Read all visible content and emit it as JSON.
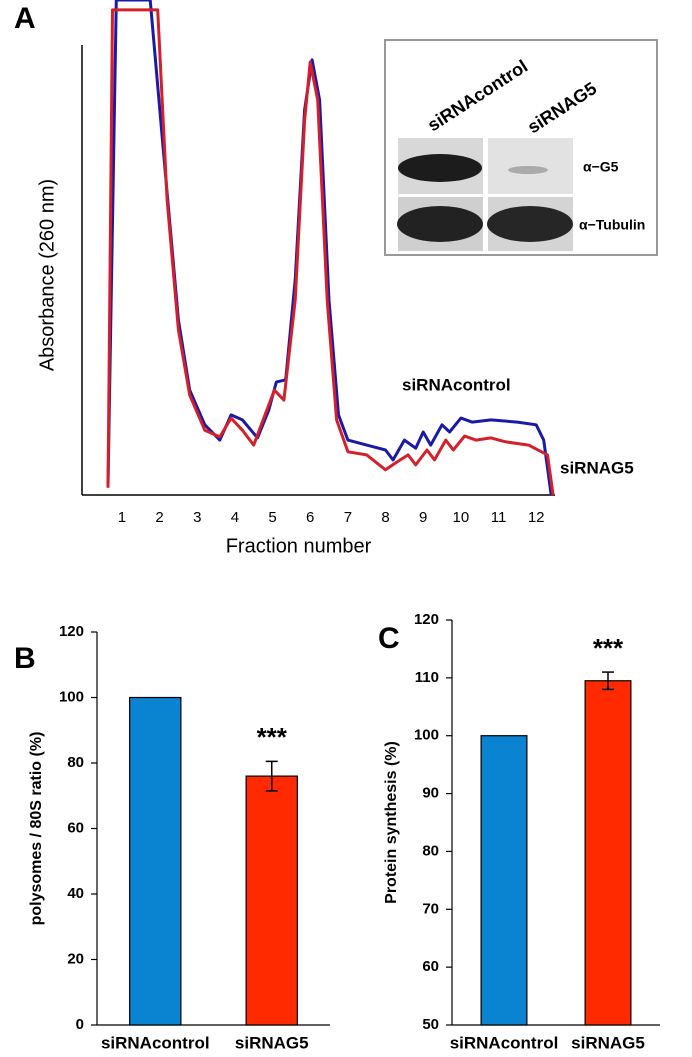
{
  "chart_data": [
    {
      "type": "line",
      "panel": "A",
      "xlabel": "Fraction number",
      "ylabel": "Absorbance (260 nm)",
      "xlim": [
        -0.06,
        12.5
      ],
      "ylim": [
        0,
        100
      ],
      "xticks": [
        1,
        2,
        3,
        4,
        5,
        6,
        7,
        8,
        9,
        10,
        11,
        12
      ],
      "series": [
        {
          "name": "siRNAcontrol",
          "color": "#1a1aa6",
          "x": [
            0.63,
            0.85,
            1.75,
            2.1,
            2.5,
            2.8,
            3.2,
            3.6,
            3.9,
            4.2,
            4.6,
            4.9,
            5.1,
            5.35,
            5.6,
            5.85,
            6.05,
            6.25,
            6.5,
            6.75,
            7.0,
            7.5,
            8.0,
            8.2,
            8.5,
            8.8,
            9.0,
            9.2,
            9.5,
            9.7,
            10.0,
            10.3,
            10.8,
            11.5,
            12.0,
            12.2,
            12.4
          ],
          "values": [
            2.2,
            110,
            110,
            76.7,
            38.9,
            23.3,
            15.6,
            12.2,
            17.8,
            16.7,
            12.7,
            18.9,
            25.1,
            25.6,
            47.8,
            85.6,
            96.7,
            87.8,
            43.3,
            17.8,
            12.2,
            11.1,
            10,
            7.8,
            12.2,
            10.4,
            14,
            11.1,
            15.6,
            14,
            17.1,
            16.2,
            16.7,
            16.2,
            15.6,
            12.2,
            0
          ]
        },
        {
          "name": "siRNAG5",
          "color": "#d4202a",
          "x": [
            0.63,
            0.75,
            1.95,
            2.2,
            2.5,
            2.8,
            3.2,
            3.6,
            3.9,
            4.2,
            4.5,
            4.8,
            5.05,
            5.3,
            5.6,
            5.85,
            6.0,
            6.2,
            6.45,
            6.7,
            7.0,
            7.5,
            8.0,
            8.3,
            8.6,
            8.8,
            9.1,
            9.3,
            9.6,
            9.8,
            10.1,
            10.4,
            10.8,
            11.2,
            11.8,
            12.3,
            12.45
          ],
          "values": [
            1.6,
            107.8,
            107.8,
            65.6,
            36.7,
            22.2,
            14.4,
            12.9,
            17.1,
            14.4,
            11.1,
            17.8,
            23.3,
            21.1,
            43.3,
            83.3,
            96.2,
            87.8,
            43.3,
            16.7,
            9.6,
            8.9,
            5.6,
            7.3,
            8.9,
            6.7,
            10,
            7.8,
            12.2,
            10,
            13.1,
            12.2,
            12.7,
            11.8,
            11.1,
            8.9,
            0
          ]
        }
      ],
      "inset": {
        "lanes": [
          "siRNAcontrol",
          "siRNAG5"
        ],
        "bands": [
          "α−G5",
          "α−Tubulin"
        ]
      }
    },
    {
      "type": "bar",
      "panel": "B",
      "ylabel": "polysomes / 80S ratio (%)",
      "categories": [
        "siRNAcontrol",
        "siRNAG5"
      ],
      "values": [
        100,
        76
      ],
      "errors": [
        null,
        4.5
      ],
      "colors": [
        "#0a84d0",
        "#ff2a00"
      ],
      "ylim": [
        0,
        120
      ],
      "yticks": [
        0,
        20,
        40,
        60,
        80,
        100,
        120
      ],
      "annotation": "***"
    },
    {
      "type": "bar",
      "panel": "C",
      "ylabel": "Protein synthesis (%)",
      "categories": [
        "siRNAcontrol",
        "siRNAG5"
      ],
      "values": [
        100,
        109.5
      ],
      "errors": [
        null,
        1.5
      ],
      "colors": [
        "#0a84d0",
        "#ff2a00"
      ],
      "ylim": [
        50,
        120
      ],
      "yticks": [
        50,
        60,
        70,
        80,
        90,
        100,
        110,
        120
      ],
      "annotation": "***"
    }
  ]
}
